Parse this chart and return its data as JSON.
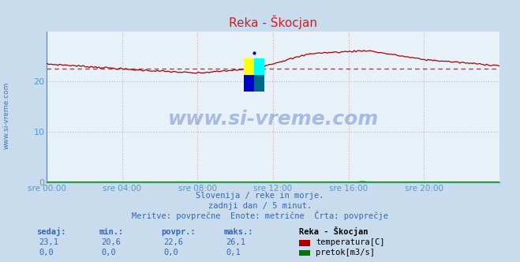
{
  "title": "Reka - Škocjan",
  "bg_color": "#c8dced",
  "plot_bg_color": "#e8f0f8",
  "grid_color": "#ddaaaa",
  "x_labels": [
    "sre 00:00",
    "sre 04:00",
    "sre 08:00",
    "sre 12:00",
    "sre 16:00",
    "sre 20:00"
  ],
  "y_ticks": [
    0,
    10,
    20
  ],
  "ylim": [
    0,
    30
  ],
  "xlim": [
    0,
    287
  ],
  "temp_avg": 22.6,
  "temp_color": "#aa0000",
  "avg_line_color": "#cc3333",
  "flow_color": "#007700",
  "axis_color": "#5599cc",
  "title_color": "#cc2222",
  "text_color": "#3366bb",
  "watermark_color": "#1144aa",
  "subtitle1": "Slovenija / reke in morje.",
  "subtitle2": "zadnji dan / 5 minut.",
  "subtitle3": "Meritve: povprečne  Enote: metrične  Črta: povprečje",
  "legend_title": "Reka - Škocjan",
  "legend_item1": "temperatura[C]",
  "legend_item2": "pretok[m3/s]",
  "col_headers": [
    "sedaj:",
    "min.:",
    "povpr.:",
    "maks.:"
  ],
  "row1_vals": [
    "23,1",
    "20,6",
    "22,6",
    "26,1"
  ],
  "row2_vals": [
    "0,0",
    "0,0",
    "0,0",
    "0,1"
  ],
  "watermark_text": "www.si-vreme.com",
  "sidebar_text": "www.si-vreme.com"
}
